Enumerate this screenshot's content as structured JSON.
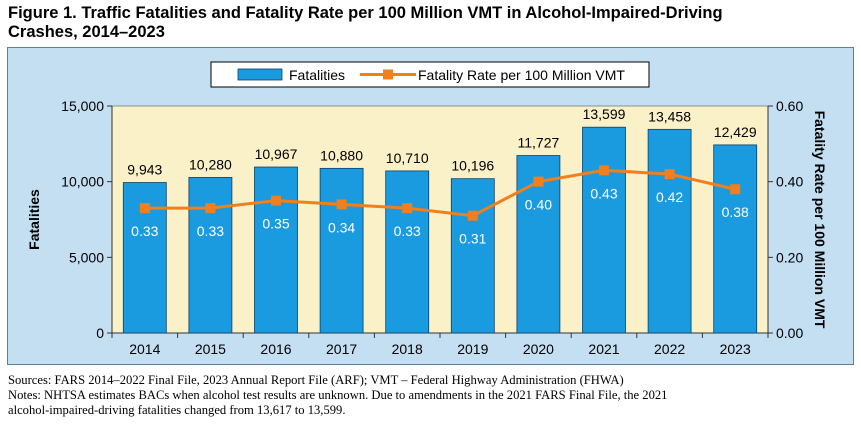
{
  "figure_title_line1": "Figure 1. Traffic Fatalities and Fatality Rate per 100 Million VMT in Alcohol-Impaired-Driving",
  "figure_title_line2": "Crashes, 2014–2023",
  "colors": {
    "bar": "#1a9be0",
    "bar_edge": "#0b3f66",
    "line": "#f07f1c",
    "plot_bg": "#faf1c8",
    "chart_bg": "#c4dff2"
  },
  "chart_data": {
    "type": "bar",
    "title": "",
    "categories": [
      "2014",
      "2015",
      "2016",
      "2017",
      "2018",
      "2019",
      "2020",
      "2021",
      "2022",
      "2023"
    ],
    "series": [
      {
        "name": "Fatalities",
        "type": "bar",
        "axis": "left",
        "values": [
          9943,
          10280,
          10967,
          10880,
          10710,
          10196,
          11727,
          13599,
          13458,
          12429
        ],
        "labels": [
          "9,943",
          "10,280",
          "10,967",
          "10,880",
          "10,710",
          "10,196",
          "11,727",
          "13,599",
          "13,458",
          "12,429"
        ]
      },
      {
        "name": "Fatality Rate per 100 Million VMT",
        "type": "line",
        "axis": "right",
        "values": [
          0.33,
          0.33,
          0.35,
          0.34,
          0.33,
          0.31,
          0.4,
          0.43,
          0.42,
          0.38
        ],
        "labels": [
          "0.33",
          "0.33",
          "0.35",
          "0.34",
          "0.33",
          "0.31",
          "0.40",
          "0.43",
          "0.42",
          "0.38"
        ]
      }
    ],
    "xlabel": "",
    "ylabel": "Fatalities",
    "y2label": "Fatality Rate per 100 Million VMT",
    "ylim": [
      0,
      15000
    ],
    "y2lim": [
      0,
      0.6
    ],
    "yticks": [
      0,
      5000,
      10000,
      15000
    ],
    "ytick_labels": [
      "0",
      "5,000",
      "10,000",
      "15,000"
    ],
    "y2ticks": [
      0,
      0.2,
      0.4,
      0.6
    ],
    "y2tick_labels": [
      "0.00",
      "0.20",
      "0.40",
      "0.60"
    ],
    "grid": false,
    "legend_position": "top-center"
  },
  "sources": "Sources: FARS 2014–2022 Final File, 2023 Annual Report File (ARF); VMT – Federal Highway Administration (FHWA)",
  "notes_line1": "Notes: NHTSA estimates BACs when alcohol test results are unknown. Due to amendments in the 2021 FARS Final File, the 2021",
  "notes_line2": "alcohol-impaired-driving fatalities changed from 13,617 to 13,599."
}
